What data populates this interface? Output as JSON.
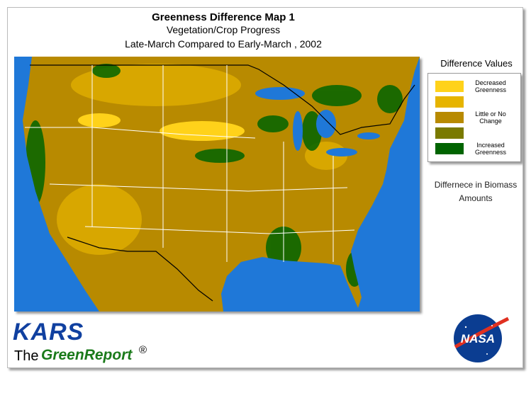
{
  "header": {
    "title": "Greenness Difference Map 1",
    "subtitle": "Vegetation/Crop Progress",
    "comparison": "Late-March Compared to Early-March , 2002"
  },
  "legend": {
    "title": "Difference Values",
    "swatches": [
      {
        "color": "#ffd21a",
        "label": "Decreased Greenness"
      },
      {
        "color": "#e6b400"
      },
      {
        "color": "#b88a00",
        "label": "Little or No Change"
      },
      {
        "color": "#7a7a00"
      },
      {
        "color": "#006400",
        "label": "Increased Greenness"
      }
    ]
  },
  "note": "Differnece in Biomass Amounts",
  "branding": {
    "org": "KARS",
    "the": "The",
    "report": "GreenReport",
    "mark": "®",
    "agency": "NASA"
  }
}
